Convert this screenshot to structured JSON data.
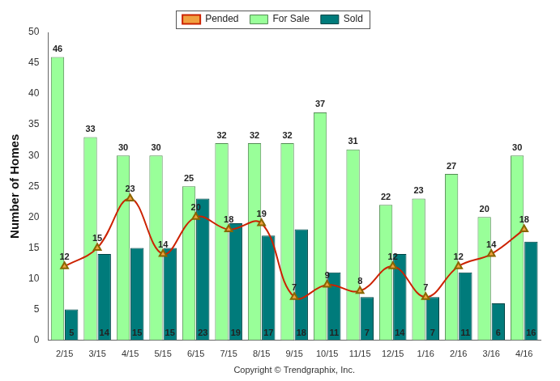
{
  "chart_data": {
    "type": "bar",
    "y_label": "Number of Homes",
    "x_label": "Copyright © Trendgraphix, Inc.",
    "categories": [
      "2/15",
      "3/15",
      "4/15",
      "5/15",
      "6/15",
      "7/15",
      "8/15",
      "9/15",
      "10/15",
      "11/15",
      "12/15",
      "1/16",
      "2/16",
      "3/16",
      "4/16"
    ],
    "series": [
      {
        "name": "For Sale",
        "type": "bar",
        "color": "#99ff99",
        "values": [
          46,
          33,
          30,
          30,
          25,
          32,
          32,
          32,
          37,
          31,
          22,
          23,
          27,
          20,
          30
        ]
      },
      {
        "name": "Sold",
        "type": "bar",
        "color": "#007b7b",
        "values": [
          5,
          14,
          15,
          15,
          23,
          19,
          17,
          18,
          11,
          7,
          14,
          7,
          11,
          6,
          16
        ]
      },
      {
        "name": "Pended",
        "type": "line",
        "color": "#cc2200",
        "marker": "triangle",
        "line_style": "solid",
        "values": [
          12,
          15,
          23,
          14,
          20,
          18,
          19,
          7,
          9,
          8,
          12,
          7,
          12,
          14,
          18
        ]
      }
    ],
    "ylim": [
      0,
      50
    ],
    "yticks": [
      0,
      5,
      10,
      15,
      20,
      25,
      30,
      35,
      40,
      45,
      50
    ],
    "grid": false,
    "legend": "top",
    "data_labels": true
  }
}
